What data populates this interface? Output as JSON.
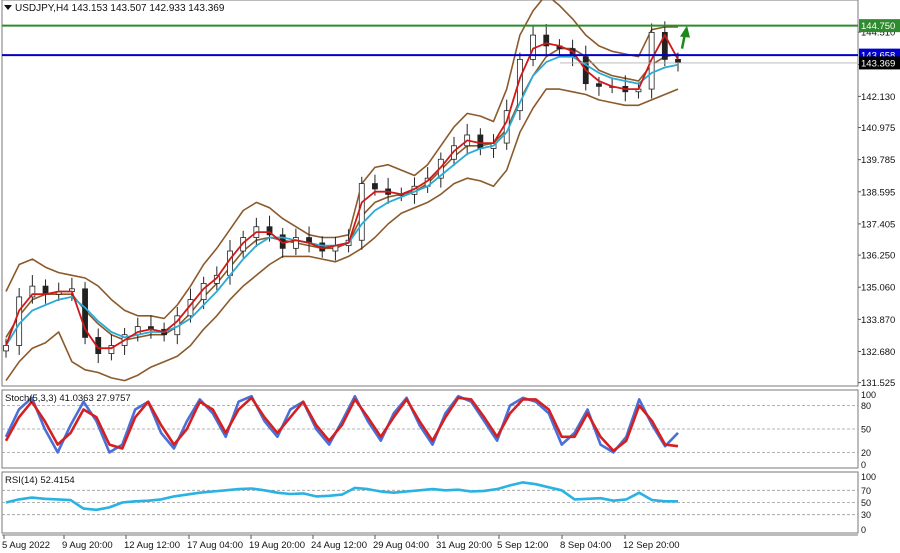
{
  "chart_data": [
    {
      "panel": "main",
      "type": "candlestick",
      "header": "USDJPY,H4  143.153 143.507 142.933 143.369",
      "header_icon": "triangle-down-icon",
      "symbol": "USDJPY",
      "timeframe": "H4",
      "ohlc": {
        "open": 143.153,
        "high": 143.507,
        "low": 142.933,
        "close": 143.369
      },
      "ylim": [
        131.4,
        145.7
      ],
      "y_ticks": [
        "144.510",
        "143.310",
        "142.130",
        "140.975",
        "139.785",
        "138.595",
        "137.405",
        "136.250",
        "135.060",
        "133.870",
        "132.680",
        "131.525"
      ],
      "horizontal_lines": [
        {
          "value": 144.75,
          "label": "144.750",
          "color": "#2e8b2e"
        },
        {
          "value": 143.658,
          "label": "143.658",
          "color": "#0000cc"
        }
      ],
      "price_label": {
        "value": 143.369,
        "label": "143.369",
        "color": "#000000"
      },
      "arrow": {
        "direction": "up",
        "color": "#1a8a1a"
      },
      "series": [
        {
          "kind": "close",
          "color": "#000000",
          "values": [
            132.9,
            134.7,
            135.1,
            134.8,
            134.9,
            135.0,
            133.2,
            132.6,
            132.9,
            133.3,
            133.6,
            133.5,
            133.3,
            134.0,
            134.6,
            135.2,
            135.5,
            136.4,
            136.9,
            137.3,
            137.0,
            136.5,
            136.9,
            136.7,
            136.4,
            136.6,
            136.8,
            138.9,
            138.7,
            138.5,
            138.5,
            138.8,
            139.1,
            139.8,
            140.3,
            140.7,
            140.2,
            140.4,
            141.6,
            143.5,
            144.4,
            144.0,
            143.9,
            143.6,
            142.6,
            142.5,
            142.5,
            142.3,
            142.4,
            144.5,
            143.5,
            143.4
          ]
        },
        {
          "kind": "ma_fast",
          "color": "#d01818",
          "values": [
            132.9,
            134.2,
            134.8,
            134.8,
            134.9,
            134.9,
            133.5,
            132.8,
            132.8,
            133.1,
            133.4,
            133.5,
            133.4,
            133.8,
            134.4,
            135.0,
            135.4,
            136.1,
            136.7,
            137.1,
            137.1,
            136.7,
            136.8,
            136.7,
            136.5,
            136.6,
            136.7,
            138.2,
            138.6,
            138.6,
            138.5,
            138.7,
            139.0,
            139.5,
            140.1,
            140.5,
            140.4,
            140.4,
            141.2,
            142.8,
            143.9,
            144.1,
            144.0,
            143.8,
            143.1,
            142.7,
            142.5,
            142.4,
            142.4,
            143.5,
            144.4,
            143.5
          ]
        },
        {
          "kind": "ma_slow",
          "color": "#2aaad4",
          "values": [
            132.9,
            133.7,
            134.2,
            134.4,
            134.6,
            134.7,
            134.3,
            133.8,
            133.4,
            133.2,
            133.3,
            133.4,
            133.4,
            133.6,
            133.9,
            134.4,
            134.9,
            135.5,
            136.1,
            136.6,
            136.9,
            136.9,
            136.8,
            136.7,
            136.6,
            136.6,
            136.7,
            137.4,
            137.9,
            138.2,
            138.4,
            138.6,
            138.8,
            139.2,
            139.6,
            140.0,
            140.2,
            140.3,
            140.8,
            141.9,
            142.9,
            143.4,
            143.6,
            143.6,
            143.3,
            143.0,
            142.8,
            142.7,
            142.6,
            143.0,
            143.2,
            143.3
          ]
        },
        {
          "kind": "bollinger_upper",
          "color": "#8b5a2b",
          "values": [
            134.9,
            135.9,
            136.1,
            135.8,
            135.6,
            135.5,
            135.4,
            135.1,
            134.6,
            134.2,
            134.0,
            134.0,
            133.9,
            134.4,
            135.1,
            135.9,
            136.5,
            137.2,
            137.9,
            138.2,
            138.0,
            137.6,
            137.3,
            137.0,
            136.9,
            136.9,
            137.0,
            138.9,
            139.5,
            139.6,
            139.4,
            139.2,
            139.6,
            140.3,
            141.0,
            141.5,
            141.4,
            141.2,
            142.4,
            144.4,
            145.3,
            145.9,
            145.5,
            145.0,
            144.4,
            144.0,
            143.8,
            143.7,
            143.6,
            144.6,
            144.7,
            144.7
          ]
        },
        {
          "kind": "bollinger_middle",
          "color": "#8b5a2b",
          "values": [
            133.2,
            134.0,
            134.6,
            134.8,
            134.8,
            134.8,
            134.2,
            133.7,
            133.3,
            133.1,
            133.2,
            133.3,
            133.3,
            133.6,
            134.1,
            134.7,
            135.2,
            135.8,
            136.4,
            136.8,
            136.9,
            136.8,
            136.7,
            136.6,
            136.5,
            136.5,
            136.7,
            137.7,
            138.2,
            138.4,
            138.5,
            138.6,
            138.9,
            139.4,
            139.9,
            140.3,
            140.3,
            140.4,
            140.9,
            142.0,
            142.9,
            143.6,
            143.9,
            143.9,
            143.6,
            143.1,
            142.9,
            142.8,
            142.7,
            143.3,
            143.6,
            143.7
          ]
        },
        {
          "kind": "bollinger_lower",
          "color": "#8b5a2b",
          "values": [
            131.6,
            132.3,
            132.8,
            133.0,
            133.4,
            132.3,
            132.0,
            131.9,
            131.7,
            131.6,
            131.8,
            132.1,
            132.3,
            132.5,
            132.9,
            133.5,
            134.0,
            134.6,
            135.1,
            135.5,
            135.9,
            136.2,
            136.2,
            136.2,
            136.1,
            136.0,
            136.2,
            136.5,
            136.9,
            137.4,
            137.8,
            138.0,
            138.2,
            138.5,
            138.9,
            139.1,
            139.0,
            138.8,
            139.4,
            140.8,
            141.7,
            142.4,
            142.4,
            142.3,
            142.2,
            142.0,
            141.9,
            141.8,
            141.8,
            142.0,
            142.2,
            142.4
          ]
        }
      ]
    },
    {
      "panel": "stochastic",
      "type": "line",
      "header": "Stoch(5,3,3) 41.0363 27.9757",
      "ylim": [
        0,
        100
      ],
      "y_ticks": [
        "100",
        "80",
        "50",
        "20",
        "0"
      ],
      "levels": [
        80,
        50,
        20
      ],
      "series": [
        {
          "kind": "main",
          "color": "#4a6fd8",
          "values": [
            40,
            75,
            90,
            50,
            20,
            55,
            85,
            60,
            20,
            30,
            75,
            85,
            45,
            25,
            60,
            88,
            70,
            40,
            85,
            92,
            60,
            40,
            75,
            85,
            50,
            30,
            60,
            92,
            60,
            35,
            70,
            90,
            55,
            30,
            70,
            92,
            85,
            60,
            35,
            80,
            90,
            85,
            70,
            30,
            45,
            75,
            30,
            20,
            40,
            88,
            55,
            28,
            45
          ]
        },
        {
          "kind": "signal",
          "color": "#d42020",
          "values": [
            35,
            65,
            85,
            60,
            30,
            45,
            75,
            65,
            30,
            25,
            65,
            85,
            55,
            30,
            50,
            85,
            75,
            45,
            75,
            90,
            65,
            45,
            65,
            85,
            55,
            35,
            55,
            88,
            65,
            40,
            65,
            88,
            60,
            35,
            65,
            90,
            88,
            65,
            40,
            70,
            88,
            88,
            75,
            40,
            40,
            70,
            40,
            22,
            35,
            80,
            60,
            30,
            28
          ]
        }
      ]
    },
    {
      "panel": "rsi",
      "type": "line",
      "header": "RSI(14) 52.4154",
      "ylim": [
        0,
        100
      ],
      "y_ticks": [
        "100",
        "70",
        "50",
        "30",
        "0"
      ],
      "levels": [
        70,
        50,
        30
      ],
      "series": [
        {
          "kind": "rsi",
          "color": "#29b2e4",
          "values": [
            50,
            55,
            58,
            56,
            55,
            54,
            40,
            38,
            42,
            50,
            52,
            53,
            55,
            60,
            63,
            66,
            68,
            70,
            72,
            73,
            70,
            66,
            64,
            65,
            60,
            61,
            63,
            74,
            72,
            68,
            66,
            68,
            70,
            72,
            70,
            71,
            68,
            69,
            72,
            78,
            83,
            80,
            75,
            70,
            55,
            56,
            57,
            53,
            55,
            66,
            54,
            52,
            52
          ]
        }
      ]
    }
  ],
  "time_axis": [
    "5 Aug 2022",
    "9 Aug 20:00",
    "12 Aug 12:00",
    "17 Aug 04:00",
    "19 Aug 20:00",
    "24 Aug 12:00",
    "29 Aug 04:00",
    "31 Aug 20:00",
    "5 Sep 12:00",
    "8 Sep 04:00",
    "12 Sep 20:00"
  ]
}
